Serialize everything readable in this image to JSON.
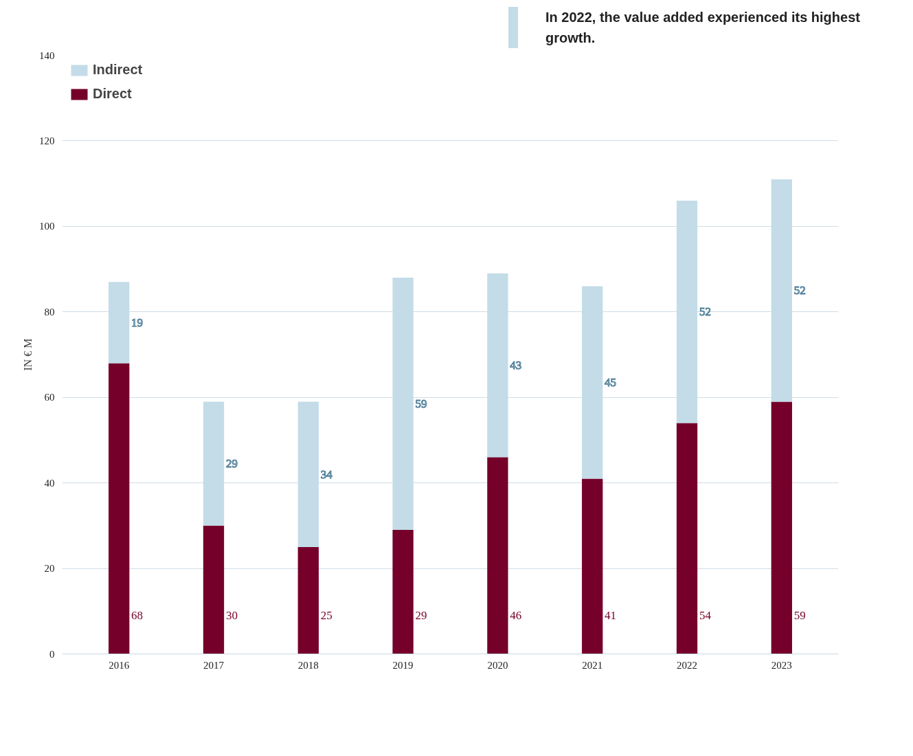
{
  "chart_data": {
    "type": "bar",
    "stacked": true,
    "categories": [
      "2016",
      "2017",
      "2018",
      "2019",
      "2020",
      "2021",
      "2022",
      "2023"
    ],
    "series": [
      {
        "name": "Direct",
        "color": "#75002a",
        "values": [
          68,
          30,
          25,
          29,
          46,
          41,
          54,
          59
        ]
      },
      {
        "name": "Indirect",
        "color": "#c3dce8",
        "values": [
          19,
          29,
          34,
          59,
          43,
          45,
          52,
          52
        ]
      }
    ],
    "ylabel": "IN € M",
    "ylim": [
      0,
      140
    ],
    "yticks": [
      0,
      20,
      40,
      60,
      80,
      100,
      120,
      140
    ],
    "grid": "y",
    "legend": "top left",
    "data_labels": true,
    "annotations": [
      "In 2022, the value added experienced its highest growth."
    ]
  }
}
